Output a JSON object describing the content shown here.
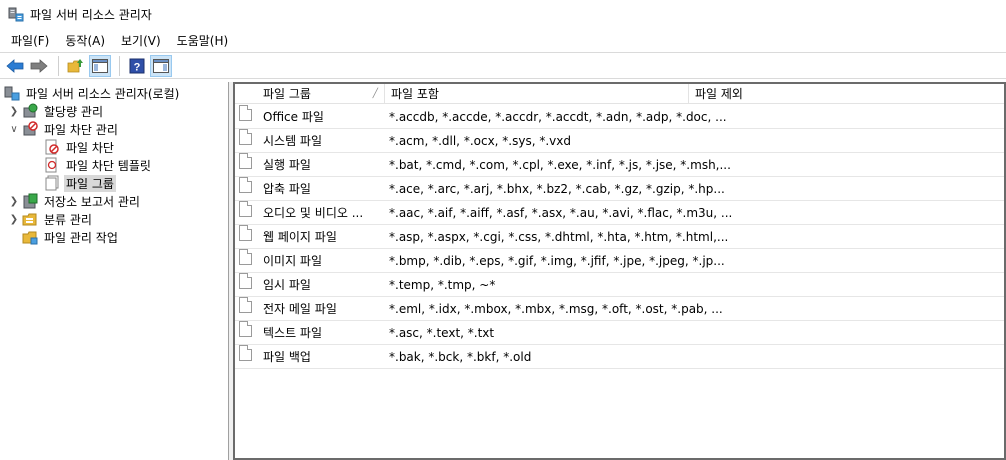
{
  "window": {
    "title": "파일 서버 리소스 관리자"
  },
  "menu": [
    "파일(F)",
    "동작(A)",
    "보기(V)",
    "도움말(H)"
  ],
  "toolbar": {
    "buttons": [
      "back-arrow-icon",
      "forward-arrow-icon",
      "up-folder-icon",
      "show-hide-tree-icon",
      "help-icon",
      "show-hide-action-pane-icon"
    ]
  },
  "tree": {
    "root": "파일 서버 리소스 관리자(로컬)",
    "quota": "할당량 관리",
    "screening": "파일 차단 관리",
    "screening_children": [
      "파일 차단",
      "파일 차단 템플릿",
      "파일 그룹"
    ],
    "reports": "저장소 보고서 관리",
    "classification": "분류 관리",
    "file_tasks": "파일 관리 작업",
    "selected": "파일 그룹"
  },
  "list": {
    "columns": [
      "파일 그룹",
      "파일 포함",
      "파일 제외"
    ],
    "rows": [
      {
        "name": "Office 파일",
        "include": "*.accdb, *.accde, *.accdr, *.accdt, *.adn, *.adp, *.doc, ...",
        "exclude": ""
      },
      {
        "name": "시스템 파일",
        "include": "*.acm, *.dll, *.ocx, *.sys, *.vxd",
        "exclude": ""
      },
      {
        "name": "실행 파일",
        "include": "*.bat, *.cmd, *.com, *.cpl, *.exe, *.inf, *.js, *.jse, *.msh,...",
        "exclude": ""
      },
      {
        "name": "압축 파일",
        "include": "*.ace, *.arc, *.arj, *.bhx, *.bz2, *.cab, *.gz, *.gzip, *.hp...",
        "exclude": ""
      },
      {
        "name": "오디오 및 비디오 ...",
        "include": "*.aac, *.aif, *.aiff, *.asf, *.asx, *.au, *.avi, *.flac, *.m3u, ...",
        "exclude": ""
      },
      {
        "name": "웹 페이지 파일",
        "include": "*.asp, *.aspx, *.cgi, *.css, *.dhtml, *.hta, *.htm, *.html,...",
        "exclude": ""
      },
      {
        "name": "이미지 파일",
        "include": "*.bmp, *.dib, *.eps, *.gif, *.img, *.jfif, *.jpe, *.jpeg, *.jp...",
        "exclude": ""
      },
      {
        "name": "임시 파일",
        "include": "*.temp, *.tmp, ~*",
        "exclude": ""
      },
      {
        "name": "전자 메일 파일",
        "include": "*.eml, *.idx, *.mbox, *.mbx, *.msg, *.oft, *.ost, *.pab, ...",
        "exclude": ""
      },
      {
        "name": "텍스트 파일",
        "include": "*.asc, *.text, *.txt",
        "exclude": ""
      },
      {
        "name": "파일 백업",
        "include": "*.bak, *.bck, *.bkf, *.old",
        "exclude": ""
      }
    ]
  },
  "colors": {
    "selection": "#d9d9d9",
    "pressed": "#cce4f7",
    "back_arrow": "#2b7cd3",
    "folder": "#e8b83a"
  }
}
